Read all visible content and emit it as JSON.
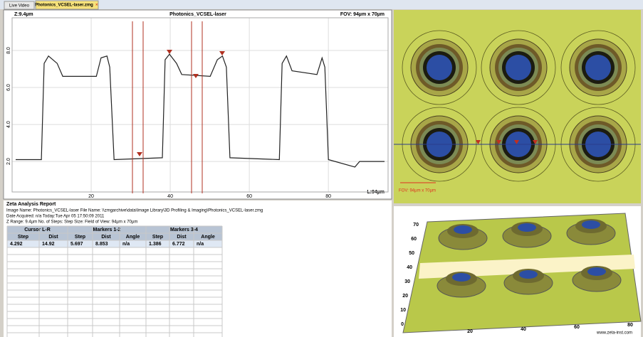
{
  "tabs": [
    "Live Video",
    "Photonics_VCSEL-laser.zmg"
  ],
  "profile": {
    "type": "line",
    "title": "Photonics_VCSEL-laser",
    "z_label": "Z:9.4µm",
    "fov_label": "FOV: 94µm x 70µm",
    "length_label": "L:94µm",
    "x": [
      0.9,
      7.4,
      8.1,
      9.2,
      11.4,
      12.8,
      21.3,
      22.5,
      24.0,
      24.7,
      25.8,
      38.0,
      38.7,
      39.8,
      41.6,
      42.9,
      50.1,
      51.9,
      53.2,
      54.2,
      55.1,
      67.6,
      68.3,
      69.4,
      70.8,
      77.1,
      78.4,
      79.1,
      80.0,
      86.7,
      87.9,
      94.2
    ],
    "values": [
      2.1,
      2.1,
      7.3,
      7.7,
      7.3,
      6.6,
      6.6,
      7.6,
      7.7,
      7.1,
      2.1,
      2.2,
      7.5,
      7.8,
      7.3,
      6.7,
      6.6,
      7.5,
      7.7,
      7.1,
      2.2,
      2.1,
      7.3,
      7.7,
      6.9,
      6.7,
      7.6,
      7.1,
      2.1,
      1.7,
      2.0,
      2.0
    ],
    "color": "#222222",
    "xlim": [
      0,
      95.1
    ],
    "ylim": [
      0.35,
      9.77
    ],
    "xticks": [
      20,
      40,
      60,
      80
    ],
    "yticks": [
      {
        "value": 2,
        "label": "2.0"
      },
      {
        "value": 4,
        "label": "4.0"
      },
      {
        "value": 6,
        "label": "6.0"
      },
      {
        "value": 8,
        "label": "8.0"
      }
    ],
    "grid": true
  },
  "image": {
    "fov_label": "FOV: 94µm x 70µm"
  },
  "report": {
    "title": "Zeta Analysis Report",
    "lines": [
      "Image Name:  Photonics_VCSEL-laser       File Name:     \\\\zmgarchive\\data\\Image Library\\3D Profiling & Imaging\\Photonics_VCSEL-laser.zmg",
      "Date Acquired:           n/a      Today:Tue Apr 05 17:50:09 2011",
      "Z Range:        9.4µm   No. of Steps:   Step Size:        Field of View:  94µm x 70µm"
    ],
    "table": {
      "groups": [
        "Cursor L-R",
        "Markers 1-2",
        "Markers 3-4"
      ],
      "columns": [
        "Step",
        "Dist",
        "Step",
        "Dist",
        "Angle",
        "Step",
        "Dist",
        "Angle"
      ],
      "rows": [
        [
          "4.292",
          "14.92",
          "5.697",
          "8.853",
          "n/a",
          "1.386",
          "6.772",
          "n/a"
        ]
      ]
    }
  },
  "view3d": {
    "y_labels": [
      "70",
      "60",
      "50",
      "40",
      "30",
      "20",
      "10",
      "0"
    ],
    "x_labels": [
      "20",
      "40",
      "60",
      "80"
    ],
    "credit": "www.zeta-inst.com"
  }
}
